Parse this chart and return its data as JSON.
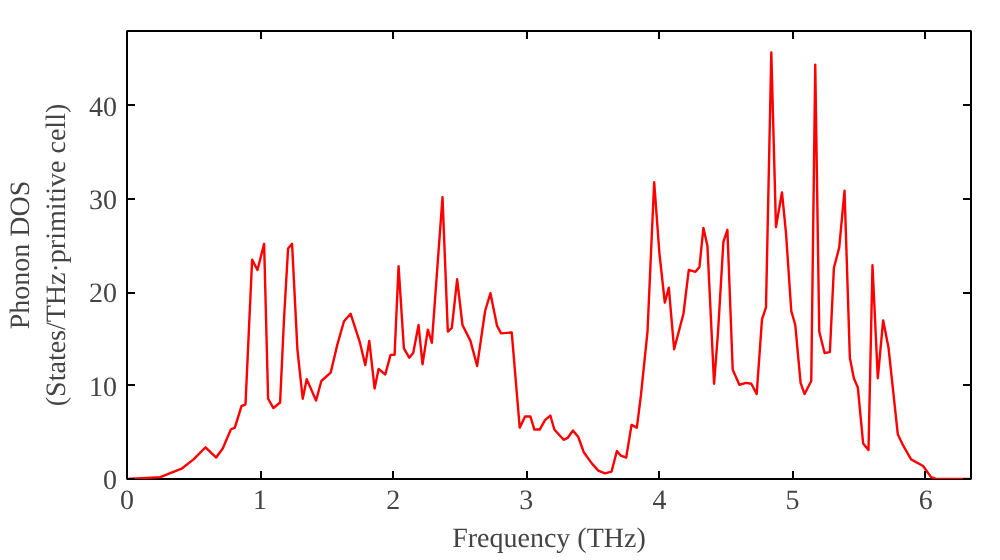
{
  "chart_data": {
    "type": "line",
    "xlabel": "Frequency (THz)",
    "ylabel": "Phonon DOS\n(States/THz·primitive cell)",
    "xlim": [
      0,
      6.34
    ],
    "ylim": [
      0,
      48
    ],
    "xticks": [
      0,
      1,
      2,
      3,
      4,
      5,
      6
    ],
    "yticks": [
      0,
      10,
      20,
      30,
      40
    ],
    "line_style": "solid",
    "series": [
      {
        "color": "#ff0000",
        "x": [
          0,
          0.25,
          0.41,
          0.5,
          0.59,
          0.67,
          0.72,
          0.78,
          0.81,
          0.86,
          0.89,
          0.94,
          0.98,
          1.03,
          1.06,
          1.1,
          1.15,
          1.18,
          1.21,
          1.24,
          1.28,
          1.32,
          1.35,
          1.42,
          1.46,
          1.53,
          1.58,
          1.63,
          1.68,
          1.75,
          1.79,
          1.82,
          1.86,
          1.89,
          1.94,
          1.98,
          2.01,
          2.04,
          2.08,
          2.12,
          2.15,
          2.19,
          2.22,
          2.26,
          2.29,
          2.37,
          2.41,
          2.44,
          2.48,
          2.52,
          2.58,
          2.63,
          2.69,
          2.73,
          2.78,
          2.81,
          2.89,
          2.95,
          2.99,
          3.03,
          3.06,
          3.1,
          3.14,
          3.18,
          3.21,
          3.28,
          3.31,
          3.35,
          3.39,
          3.43,
          3.49,
          3.54,
          3.59,
          3.64,
          3.68,
          3.71,
          3.75,
          3.79,
          3.83,
          3.86,
          3.91,
          3.96,
          4.0,
          4.04,
          4.07,
          4.11,
          4.18,
          4.22,
          4.27,
          4.3,
          4.33,
          4.36,
          4.41,
          4.44,
          4.48,
          4.51,
          4.55,
          4.6,
          4.65,
          4.69,
          4.73,
          4.77,
          4.8,
          4.84,
          4.875,
          4.92,
          4.95,
          4.99,
          5.02,
          5.06,
          5.09,
          5.14,
          5.17,
          5.2,
          5.24,
          5.28,
          5.31,
          5.35,
          5.39,
          5.43,
          5.46,
          5.49,
          5.53,
          5.57,
          5.6,
          5.64,
          5.68,
          5.72,
          5.79,
          5.83,
          5.89,
          5.98,
          6.04,
          6.08,
          6.34
        ],
        "values": [
          0,
          0.2,
          1.1,
          2.1,
          3.4,
          2.3,
          3.3,
          5.3,
          5.5,
          7.8,
          8,
          23.5,
          22.4,
          25.2,
          8.6,
          7.6,
          8.2,
          17.3,
          24.7,
          25.2,
          13.9,
          8.6,
          10.7,
          8.4,
          10.5,
          11.4,
          14.4,
          16.9,
          17.7,
          14.6,
          12.2,
          14.8,
          9.7,
          11.8,
          11.2,
          13.3,
          13.3,
          22.8,
          14,
          13,
          13.5,
          16.5,
          12.3,
          16,
          14.6,
          30.2,
          15.8,
          16.2,
          21.4,
          16.5,
          14.8,
          12.1,
          18,
          19.9,
          16.4,
          15.6,
          15.7,
          5.5,
          6.7,
          6.7,
          5.3,
          5.3,
          6.3,
          6.8,
          5.3,
          4.2,
          4.4,
          5.2,
          4.5,
          2.9,
          1.7,
          0.9,
          0.6,
          0.8,
          3,
          2.5,
          2.3,
          5.8,
          5.5,
          8.9,
          15.8,
          31.8,
          24.1,
          18.9,
          20.5,
          13.9,
          17.7,
          22.4,
          22.2,
          22.7,
          26.9,
          25,
          10.2,
          15.8,
          25.4,
          26.7,
          11.7,
          10.1,
          10.3,
          10.2,
          9.1,
          17.1,
          18.4,
          45.7,
          27,
          30.7,
          26.4,
          18,
          16.5,
          10.3,
          9.1,
          10.5,
          44.4,
          15.8,
          13.5,
          13.6,
          22.6,
          24.8,
          30.9,
          13,
          10.8,
          9.8,
          3.8,
          3.1,
          22.9,
          10.8,
          17,
          14.1,
          4.8,
          3.6,
          2.1,
          1.4,
          0.2,
          0,
          0
        ]
      }
    ]
  }
}
